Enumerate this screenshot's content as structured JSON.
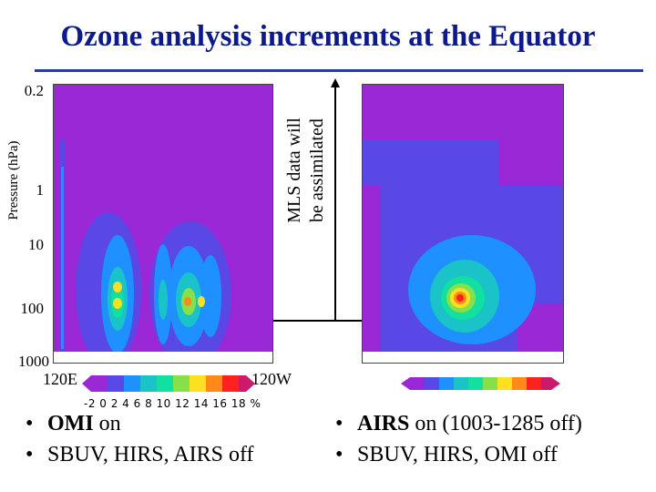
{
  "title": "Ozone analysis increments at the Equator",
  "y_axis_label": "Pressure (hPa)",
  "y_ticks": [
    "0.2",
    "1",
    "10",
    "100",
    "1000"
  ],
  "x_left_label": "120E",
  "x_right_label": "120W",
  "annotation": "MLS data will be assimilated",
  "annotation_lines": [
    "MLS data will",
    "be assimilated"
  ],
  "colorbar_labels": "-2  0  2  4  6  8 10 12 14 16 18  %",
  "left_panel": {
    "bullet1_bold": "OMI",
    "bullet1_rest": " on",
    "bullet2": "SBUV, HIRS, AIRS off"
  },
  "right_panel": {
    "bullet1_bold": "AIRS",
    "bullet1_rest": " on (1003-1285 off)",
    "bullet2": "SBUV, HIRS, OMI off"
  },
  "colors": {
    "title": "#0c1a8c",
    "background_field": "#9b28d6",
    "level1": "#5a48e6",
    "level2": "#1e90ff",
    "level3": "#19c3c8",
    "level4": "#12e0a0",
    "level5": "#86e04a",
    "level6": "#ffe020",
    "level7": "#ff8a1a",
    "level8": "#ff2020",
    "level9": "#cc1a6a"
  }
}
